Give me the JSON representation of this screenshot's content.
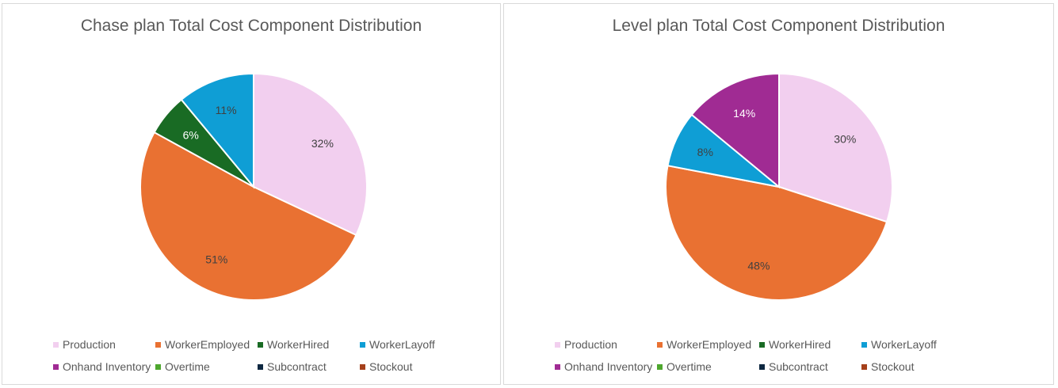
{
  "chart_data": [
    {
      "type": "pie",
      "title": "Chase plan Total Cost Component Distribution",
      "legend": "bottom",
      "categories": [
        "Production",
        "WorkerEmployed",
        "WorkerHired",
        "WorkerLayoff",
        "Onhand Inventory",
        "Overtime",
        "Subcontract",
        "Stockout"
      ],
      "values": [
        32,
        51,
        6,
        11,
        0,
        0,
        0,
        0
      ],
      "data_labels": [
        "32%",
        "51%",
        "6%",
        "11%",
        "",
        "",
        "",
        ""
      ]
    },
    {
      "type": "pie",
      "title": "Level plan Total Cost Component Distribution",
      "legend": "bottom",
      "categories": [
        "Production",
        "WorkerEmployed",
        "WorkerHired",
        "WorkerLayoff",
        "Onhand Inventory",
        "Overtime",
        "Subcontract",
        "Stockout"
      ],
      "values": [
        30,
        48,
        0,
        8,
        14,
        0,
        0,
        0
      ],
      "data_labels": [
        "30%",
        "48%",
        "",
        "8%",
        "14%",
        "",
        "",
        ""
      ]
    }
  ],
  "colors": [
    "#f2cfef",
    "#e97132",
    "#196b24",
    "#0f9ed5",
    "#a02b93",
    "#4ea72e",
    "#0e2841",
    "#a5401b"
  ],
  "label_text_colors": [
    "#404040",
    "#404040",
    "#ffffff",
    "#404040",
    "#ffffff",
    "#404040",
    "#ffffff",
    "#ffffff"
  ]
}
